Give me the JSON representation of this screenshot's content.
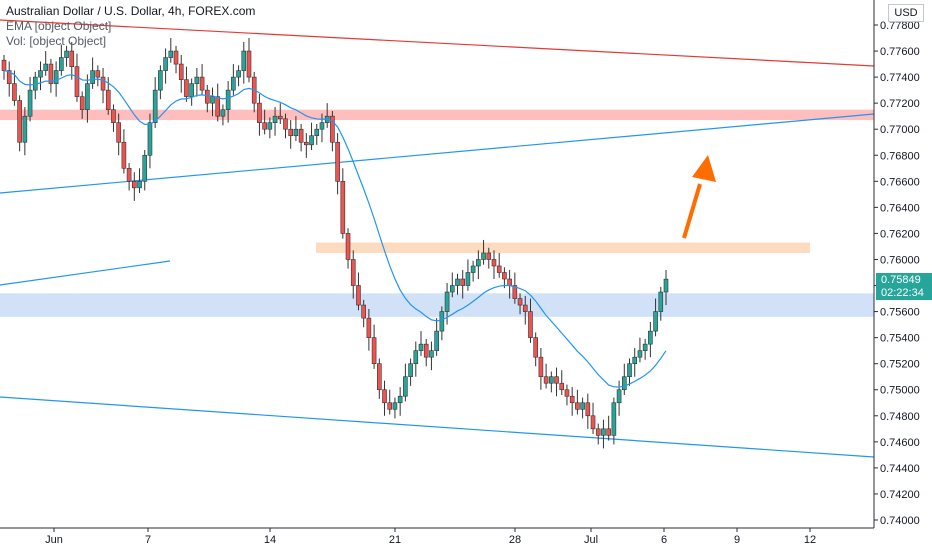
{
  "legend": {
    "title": "Australian Dollar / U.S. Dollar, 4h, FOREX.com",
    "ema": "EMA [object Object]",
    "vol": "Vol: [object Object]"
  },
  "currency": "USD",
  "price_tag": {
    "price": "0.75849",
    "countdown": "02:22:34"
  },
  "colors": {
    "up": "#26a69a",
    "down": "#ef5350",
    "wick_dark": "#222222",
    "ema": "#2196f3",
    "trend_red": "#e53935",
    "trend_blue": "#2196f3",
    "zone_red": "#ffb3b3",
    "zone_orange": "#fcd5b5",
    "zone_blue": "#c9dcf7",
    "arrow": "#ff6d00"
  },
  "chart_data": {
    "type": "candlestick",
    "title": "Australian Dollar / U.S. Dollar, 4h, FOREX.com",
    "ylim": [
      0.739,
      0.779
    ],
    "y_ticks": [
      "0.77800",
      "0.77600",
      "0.77400",
      "0.77200",
      "0.77000",
      "0.76800",
      "0.76600",
      "0.76400",
      "0.76200",
      "0.76000",
      "0.75800",
      "0.75600",
      "0.75400",
      "0.75200",
      "0.75000",
      "0.74800",
      "0.74600",
      "0.74400",
      "0.74200",
      "0.74000"
    ],
    "x_ticks": [
      "Jun",
      "7",
      "14",
      "21",
      "28",
      "Jul",
      "6",
      "9",
      "12"
    ],
    "last_price": 0.75849,
    "zones": [
      {
        "name": "resistance-red",
        "from": 0.7707,
        "to": 0.7715
      },
      {
        "name": "resistance-orange",
        "from": 0.7605,
        "to": 0.7613
      },
      {
        "name": "support-blue",
        "from": 0.7556,
        "to": 0.7574
      }
    ],
    "series_close": [
      0.7745,
      0.7735,
      0.7722,
      0.769,
      0.771,
      0.773,
      0.774,
      0.7745,
      0.775,
      0.7735,
      0.7745,
      0.7755,
      0.776,
      0.7748,
      0.7725,
      0.7715,
      0.7735,
      0.7745,
      0.774,
      0.773,
      0.7715,
      0.7705,
      0.769,
      0.767,
      0.766,
      0.7655,
      0.766,
      0.768,
      0.7705,
      0.773,
      0.7745,
      0.7755,
      0.776,
      0.775,
      0.7738,
      0.7725,
      0.7735,
      0.774,
      0.773,
      0.772,
      0.7725,
      0.771,
      0.7715,
      0.773,
      0.774,
      0.7745,
      0.776,
      0.774,
      0.772,
      0.7705,
      0.77,
      0.7705,
      0.771,
      0.7708,
      0.77,
      0.7695,
      0.77,
      0.769,
      0.7688,
      0.7695,
      0.77,
      0.7705,
      0.771,
      0.769,
      0.766,
      0.762,
      0.76,
      0.758,
      0.7565,
      0.7555,
      0.754,
      0.752,
      0.75,
      0.749,
      0.7485,
      0.749,
      0.7495,
      0.751,
      0.752,
      0.753,
      0.7535,
      0.7525,
      0.753,
      0.7545,
      0.756,
      0.7575,
      0.758,
      0.7585,
      0.758,
      0.759,
      0.7595,
      0.76,
      0.7605,
      0.76,
      0.7595,
      0.759,
      0.7585,
      0.758,
      0.757,
      0.7565,
      0.756,
      0.754,
      0.7525,
      0.751,
      0.7505,
      0.751,
      0.7505,
      0.75,
      0.7495,
      0.749,
      0.7485,
      0.749,
      0.748,
      0.747,
      0.7465,
      0.747,
      0.7465,
      0.749,
      0.75,
      0.751,
      0.752,
      0.7525,
      0.753,
      0.7535,
      0.7545,
      0.756,
      0.7575,
      0.75849
    ]
  }
}
